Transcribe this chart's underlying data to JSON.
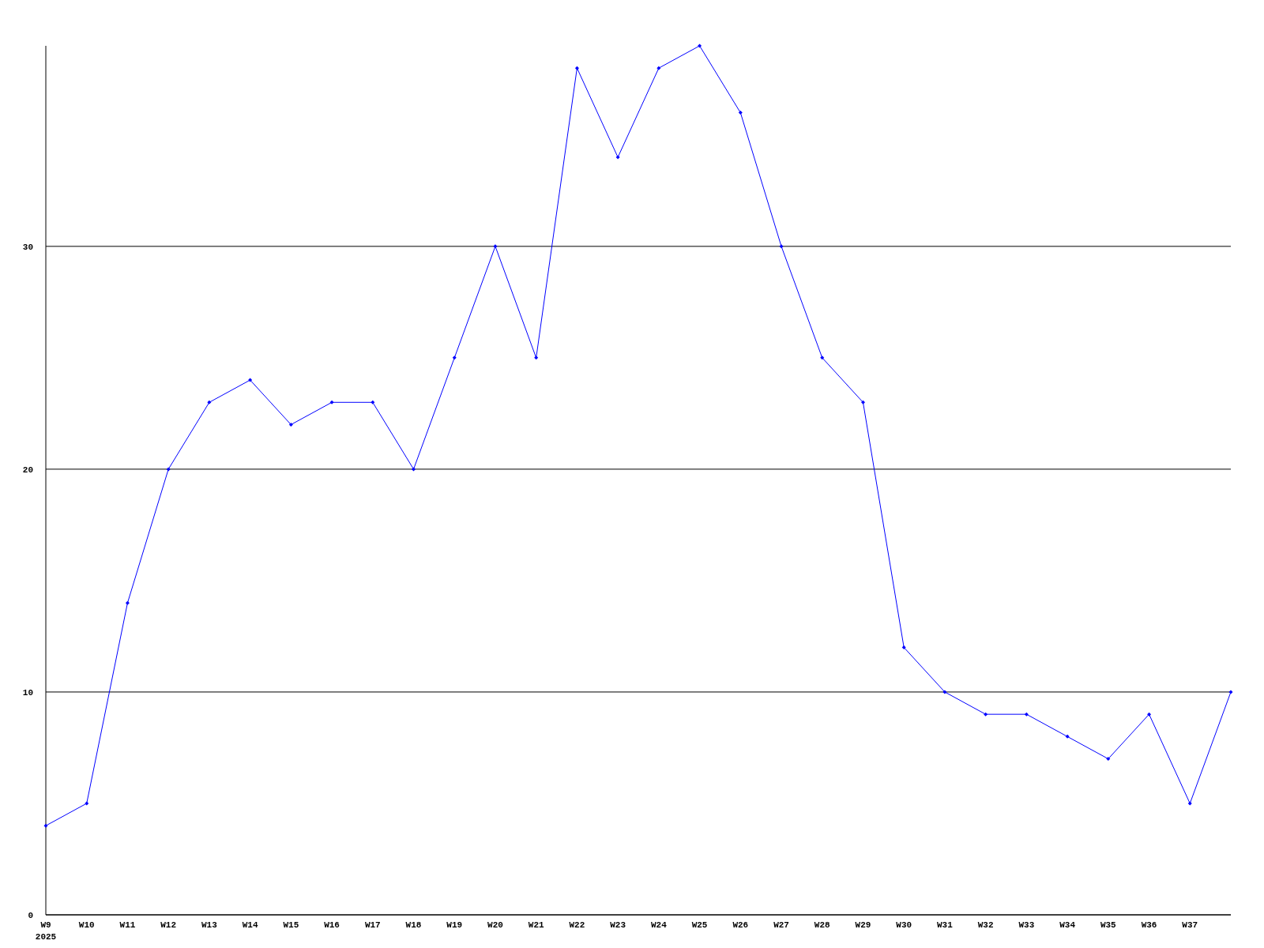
{
  "chart_data": {
    "type": "line",
    "categories": [
      "W9",
      "W10",
      "W11",
      "W12",
      "W13",
      "W14",
      "W15",
      "W16",
      "W17",
      "W18",
      "W19",
      "W20",
      "W21",
      "W22",
      "W23",
      "W24",
      "W25",
      "W26",
      "W27",
      "W28",
      "W29",
      "W30",
      "W31",
      "W32",
      "W33",
      "W34",
      "W35",
      "W36",
      "W37",
      null
    ],
    "series": [
      {
        "color": "#0000ff",
        "values": [
          4,
          5,
          14,
          20,
          23,
          24,
          22,
          23,
          23,
          20,
          25,
          30,
          25,
          38,
          34,
          38,
          39,
          36,
          30,
          25,
          23,
          12,
          10,
          9,
          9,
          8,
          7,
          9,
          5,
          10
        ]
      }
    ],
    "ylim": [
      0,
      39
    ],
    "yticks": [
      0,
      10,
      20,
      30
    ],
    "grid": "y",
    "marker": "diamond",
    "line_style": "solid",
    "annotations": [
      "2025"
    ]
  }
}
